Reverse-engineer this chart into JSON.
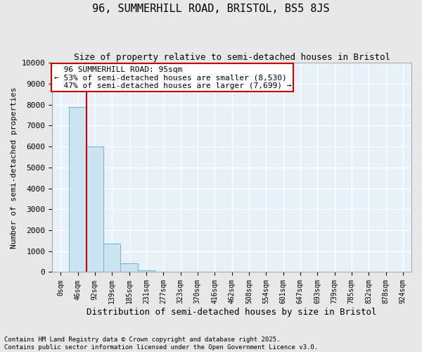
{
  "title": "96, SUMMERHILL ROAD, BRISTOL, BS5 8JS",
  "subtitle": "Size of property relative to semi-detached houses in Bristol",
  "xlabel": "Distribution of semi-detached houses by size in Bristol",
  "ylabel": "Number of semi-detached properties",
  "bin_labels": [
    "0sqm",
    "46sqm",
    "92sqm",
    "139sqm",
    "185sqm",
    "231sqm",
    "277sqm",
    "323sqm",
    "370sqm",
    "416sqm",
    "462sqm",
    "508sqm",
    "554sqm",
    "601sqm",
    "647sqm",
    "693sqm",
    "739sqm",
    "785sqm",
    "832sqm",
    "878sqm",
    "924sqm"
  ],
  "bar_heights": [
    0,
    7900,
    6000,
    1350,
    420,
    90,
    30,
    10,
    4,
    2,
    1,
    0,
    0,
    0,
    0,
    0,
    0,
    0,
    0,
    0,
    0
  ],
  "bar_color": "#cce5f3",
  "bar_edge_color": "#7ab8d4",
  "property_label": "96 SUMMERHILL ROAD: 95sqm",
  "smaller_pct": "53%",
  "smaller_count": 8530,
  "larger_pct": "47%",
  "larger_count": 7699,
  "vline_color": "#cc0000",
  "annotation_box_color": "#cc0000",
  "ylim": [
    0,
    10000
  ],
  "yticks": [
    0,
    1000,
    2000,
    3000,
    4000,
    5000,
    6000,
    7000,
    8000,
    9000,
    10000
  ],
  "property_vline_x": 1.5,
  "footer_line1": "Contains HM Land Registry data © Crown copyright and database right 2025.",
  "footer_line2": "Contains public sector information licensed under the Open Government Licence v3.0.",
  "background_color": "#e8e8e8",
  "plot_background_color": "#e8f0f8"
}
